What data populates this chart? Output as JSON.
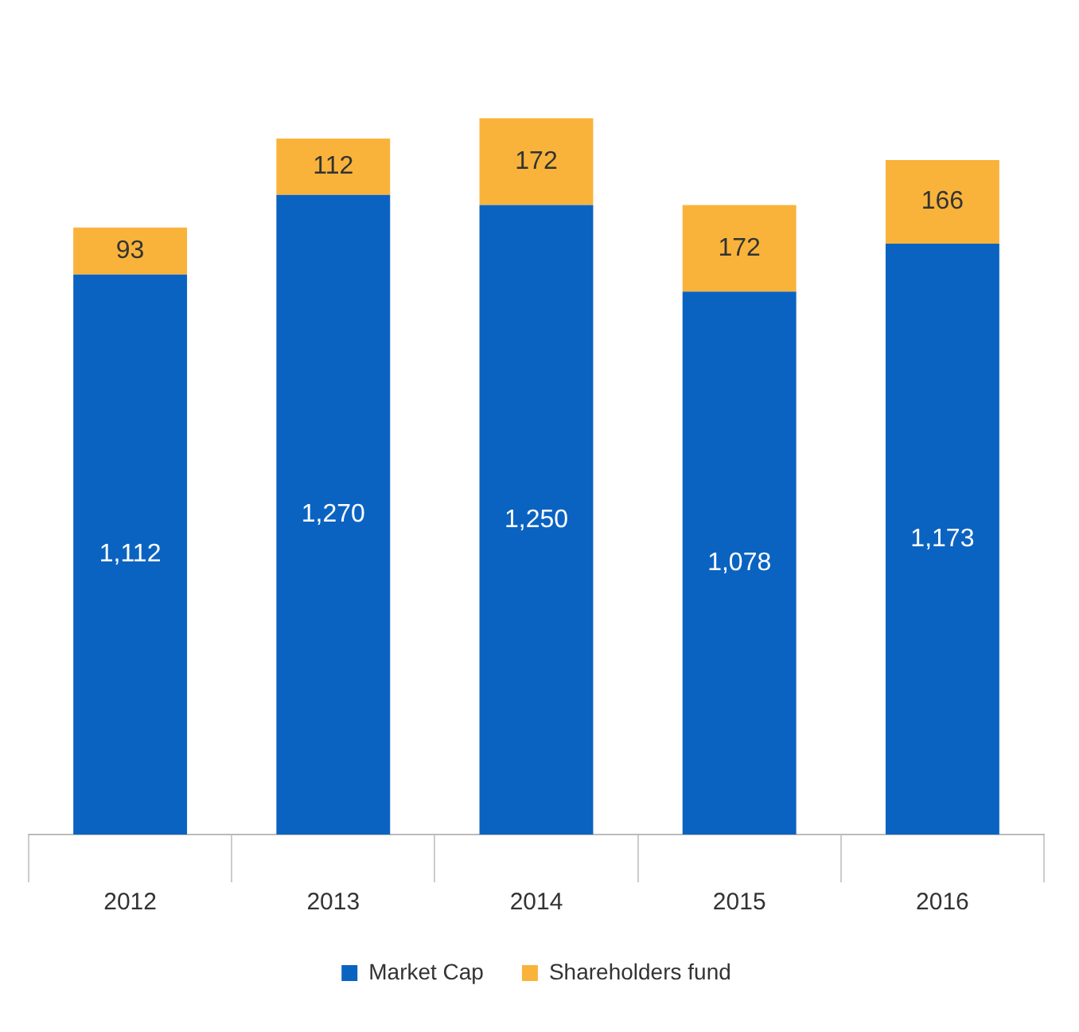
{
  "chart_data": {
    "type": "bar",
    "stacked": true,
    "categories": [
      "2012",
      "2013",
      "2014",
      "2015",
      "2016"
    ],
    "series": [
      {
        "name": "Market Cap",
        "color": "#0b63c1",
        "values": [
          1112,
          1270,
          1250,
          1078,
          1173
        ],
        "value_labels": [
          "1,112",
          "1,270",
          "1,250",
          "1,078",
          "1,173"
        ]
      },
      {
        "name": "Shareholders fund",
        "color": "#f9b33b",
        "values": [
          93,
          112,
          172,
          172,
          166
        ],
        "value_labels": [
          "93",
          "112",
          "172",
          "172",
          "166"
        ]
      }
    ],
    "tick_labels": "x",
    "grid": false,
    "legend": "bottom"
  }
}
